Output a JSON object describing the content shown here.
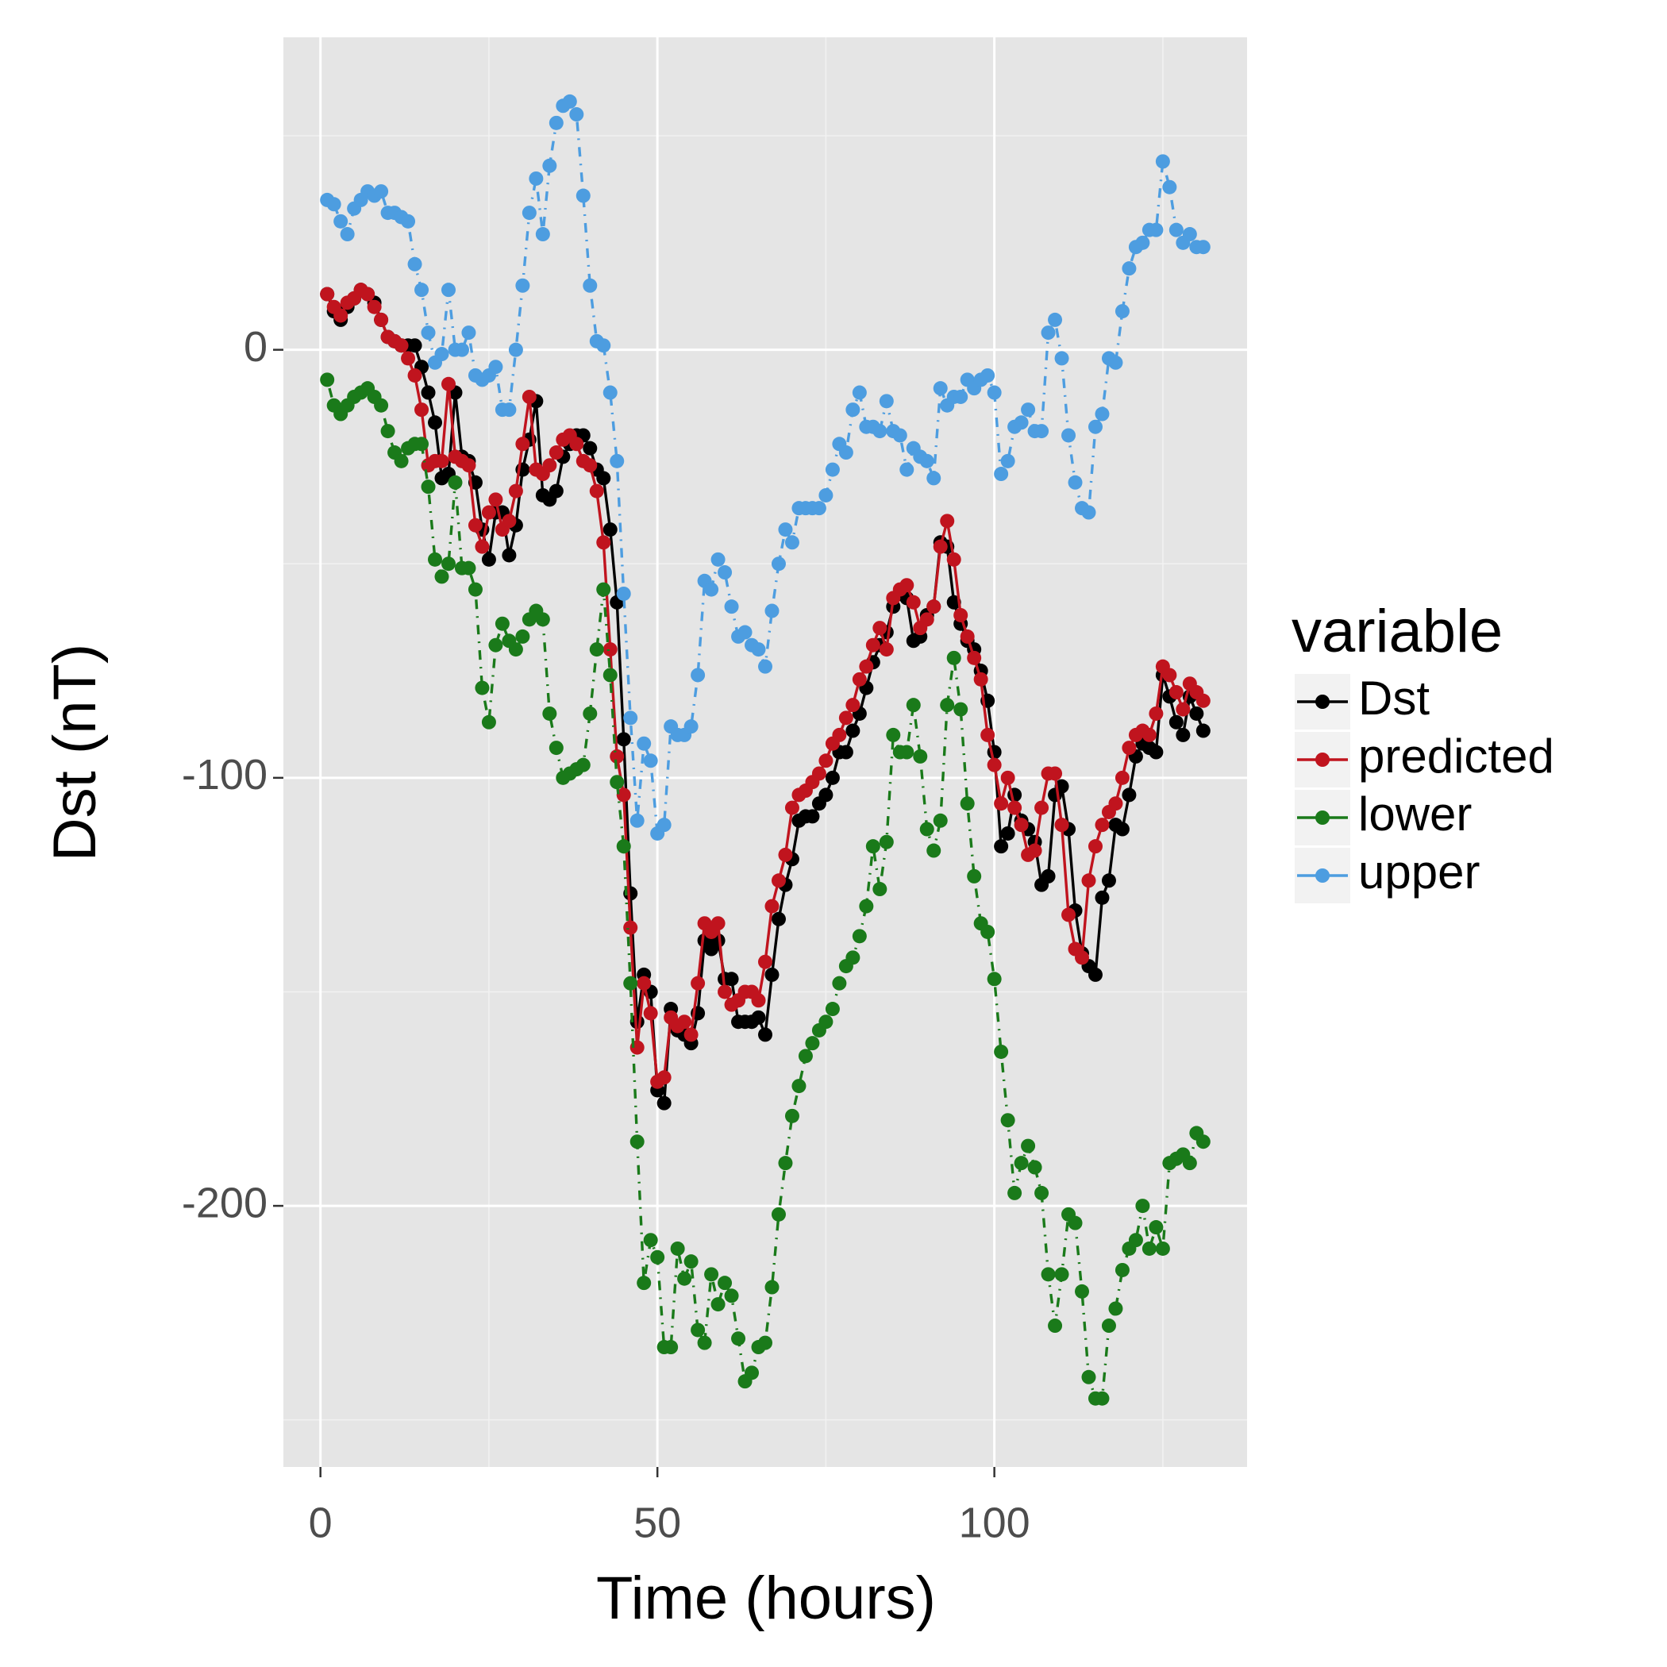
{
  "chart_data": {
    "type": "line",
    "xlabel": "Time (hours)",
    "ylabel": "Dst (nT)",
    "legend_title": "variable",
    "legend": "right",
    "grid": true,
    "xlim": [
      -5.5,
      137.5
    ],
    "ylim": [
      -261,
      73
    ],
    "xticks": [
      0,
      50,
      100
    ],
    "yticks": [
      -200,
      -100,
      0
    ],
    "x": [
      1,
      2,
      3,
      4,
      5,
      6,
      7,
      8,
      9,
      10,
      11,
      12,
      13,
      14,
      15,
      16,
      17,
      18,
      19,
      20,
      21,
      22,
      23,
      24,
      25,
      26,
      27,
      28,
      29,
      30,
      31,
      32,
      33,
      34,
      35,
      36,
      37,
      38,
      39,
      40,
      41,
      42,
      43,
      44,
      45,
      46,
      47,
      48,
      49,
      50,
      51,
      52,
      53,
      54,
      55,
      56,
      57,
      58,
      59,
      60,
      61,
      62,
      63,
      64,
      65,
      66,
      67,
      68,
      69,
      70,
      71,
      72,
      73,
      74,
      75,
      76,
      77,
      78,
      79,
      80,
      81,
      82,
      83,
      84,
      85,
      86,
      87,
      88,
      89,
      90,
      91,
      92,
      93,
      94,
      95,
      96,
      97,
      98,
      99,
      100,
      101,
      102,
      103,
      104,
      105,
      106,
      107,
      108,
      109,
      110,
      111,
      112,
      113,
      114,
      115,
      116,
      117,
      118,
      119,
      120,
      121,
      122,
      123,
      124,
      125,
      126,
      127,
      128,
      129,
      130,
      131
    ],
    "series": [
      {
        "name": "Dst",
        "color": "#000000",
        "linestyle": "solid",
        "values": [
          13,
          9,
          7,
          10,
          12,
          14,
          13,
          11,
          7,
          3,
          2,
          1,
          1,
          1,
          -4,
          -10,
          -17,
          -30,
          -29,
          -10,
          -25,
          -26,
          -31,
          -42,
          -49,
          -38,
          -38,
          -48,
          -41,
          -28,
          -21,
          -12,
          -34,
          -35,
          -33,
          -25,
          -22,
          -20,
          -20,
          -23,
          -28,
          -30,
          -42,
          -59,
          -91,
          -127,
          -157,
          -146,
          -150,
          -173,
          -176,
          -154,
          -159,
          -160,
          -162,
          -155,
          -138,
          -140,
          -138,
          -147,
          -147,
          -157,
          -157,
          -157,
          -156,
          -160,
          -146,
          -133,
          -125,
          -119,
          -110,
          -109,
          -109,
          -106,
          -104,
          -100,
          -94,
          -94,
          -89,
          -85,
          -79,
          -73,
          -69,
          -66,
          -60,
          -57,
          -58,
          -68,
          -67,
          -62,
          -60,
          -45,
          -46,
          -59,
          -64,
          -68,
          -70,
          -75,
          -82,
          -94,
          -116,
          -113,
          -104,
          -110,
          -112,
          -115,
          -125,
          -123,
          -104,
          -102,
          -112,
          -131,
          -141,
          -144,
          -146,
          -128,
          -124,
          -111,
          -112,
          -104,
          -95,
          -92,
          -93,
          -94,
          -76,
          -81,
          -87,
          -90,
          -81,
          -85,
          -89
        ]
      },
      {
        "name": "predicted",
        "color": "#c0141e",
        "linestyle": "solid",
        "values": [
          13,
          10,
          8,
          11,
          12,
          14,
          13,
          10,
          7,
          3,
          2,
          1,
          -2,
          -6,
          -14,
          -27,
          -26,
          -26,
          -8,
          -25,
          -26,
          -27,
          -41,
          -46,
          -38,
          -35,
          -42,
          -40,
          -33,
          -22,
          -11,
          -28,
          -29,
          -27,
          -24,
          -21,
          -20,
          -22,
          -26,
          -27,
          -33,
          -45,
          -70,
          -95,
          -104,
          -135,
          -163,
          -148,
          -155,
          -171,
          -170,
          -156,
          -158,
          -157,
          -160,
          -148,
          -134,
          -136,
          -134,
          -150,
          -153,
          -152,
          -150,
          -150,
          -152,
          -143,
          -130,
          -124,
          -118,
          -107,
          -104,
          -103,
          -101,
          -99,
          -96,
          -92,
          -90,
          -86,
          -83,
          -77,
          -74,
          -69,
          -65,
          -70,
          -58,
          -56,
          -55,
          -59,
          -65,
          -63,
          -60,
          -46,
          -40,
          -49,
          -62,
          -67,
          -72,
          -77,
          -90,
          -97,
          -106,
          -100,
          -107,
          -111,
          -118,
          -117,
          -107,
          -99,
          -99,
          -111,
          -132,
          -140,
          -142,
          -124,
          -116,
          -111,
          -108,
          -106,
          -100,
          -93,
          -90,
          -89,
          -90,
          -85,
          -74,
          -76,
          -80,
          -84,
          -78,
          -80,
          -82
        ]
      },
      {
        "name": "lower",
        "color": "#1a7a1a",
        "linestyle": "dotdash",
        "values": [
          -7,
          -13,
          -15,
          -13,
          -11,
          -10,
          -9,
          -11,
          -13,
          -19,
          -24,
          -26,
          -23,
          -22,
          -22,
          -32,
          -49,
          -53,
          -50,
          -31,
          -51,
          -51,
          -56,
          -79,
          -87,
          -69,
          -64,
          -68,
          -70,
          -67,
          -63,
          -61,
          -63,
          -85,
          -93,
          -100,
          -99,
          -98,
          -97,
          -85,
          -70,
          -56,
          -76,
          -101,
          -116,
          -148,
          -185,
          -218,
          -208,
          -212,
          -233,
          -233,
          -210,
          -217,
          -213,
          -229,
          -232,
          -216,
          -223,
          -218,
          -221,
          -231,
          -241,
          -239,
          -233,
          -232,
          -219,
          -202,
          -190,
          -179,
          -172,
          -165,
          -162,
          -159,
          -157,
          -154,
          -148,
          -144,
          -142,
          -137,
          -130,
          -116,
          -126,
          -115,
          -90,
          -94,
          -94,
          -83,
          -95,
          -112,
          -117,
          -110,
          -83,
          -72,
          -84,
          -106,
          -123,
          -134,
          -136,
          -147,
          -164,
          -180,
          -197,
          -190,
          -186,
          -191,
          -197,
          -216,
          -228,
          -216,
          -202,
          -204,
          -220,
          -240,
          -245,
          -245,
          -228,
          -224,
          -215,
          -210,
          -208,
          -200,
          -210,
          -205,
          -210,
          -190,
          -189,
          -188,
          -190,
          -183,
          -185
        ]
      },
      {
        "name": "upper",
        "color": "#4d9de0",
        "linestyle": "dotdash",
        "values": [
          35,
          34,
          30,
          27,
          33,
          35,
          37,
          36,
          37,
          32,
          32,
          31,
          30,
          20,
          14,
          4,
          -3,
          -1,
          14,
          0,
          0,
          4,
          -6,
          -7,
          -6,
          -4,
          -14,
          -14,
          0,
          15,
          32,
          40,
          27,
          43,
          53,
          57,
          58,
          55,
          36,
          15,
          2,
          1,
          -10,
          -26,
          -57,
          -86,
          -110,
          -92,
          -96,
          -113,
          -111,
          -88,
          -90,
          -90,
          -88,
          -76,
          -54,
          -56,
          -49,
          -52,
          -60,
          -67,
          -66,
          -69,
          -70,
          -74,
          -61,
          -50,
          -42,
          -45,
          -37,
          -37,
          -37,
          -37,
          -34,
          -28,
          -22,
          -24,
          -14,
          -10,
          -18,
          -18,
          -19,
          -12,
          -19,
          -20,
          -28,
          -23,
          -25,
          -26,
          -30,
          -9,
          -13,
          -11,
          -11,
          -7,
          -9,
          -7,
          -6,
          -10,
          -29,
          -26,
          -18,
          -17,
          -14,
          -19,
          -19,
          4,
          7,
          -2,
          -20,
          -31,
          -37,
          -38,
          -18,
          -15,
          -2,
          -3,
          9,
          19,
          24,
          25,
          28,
          28,
          44,
          38,
          28,
          25,
          27,
          24,
          24
        ]
      }
    ]
  }
}
